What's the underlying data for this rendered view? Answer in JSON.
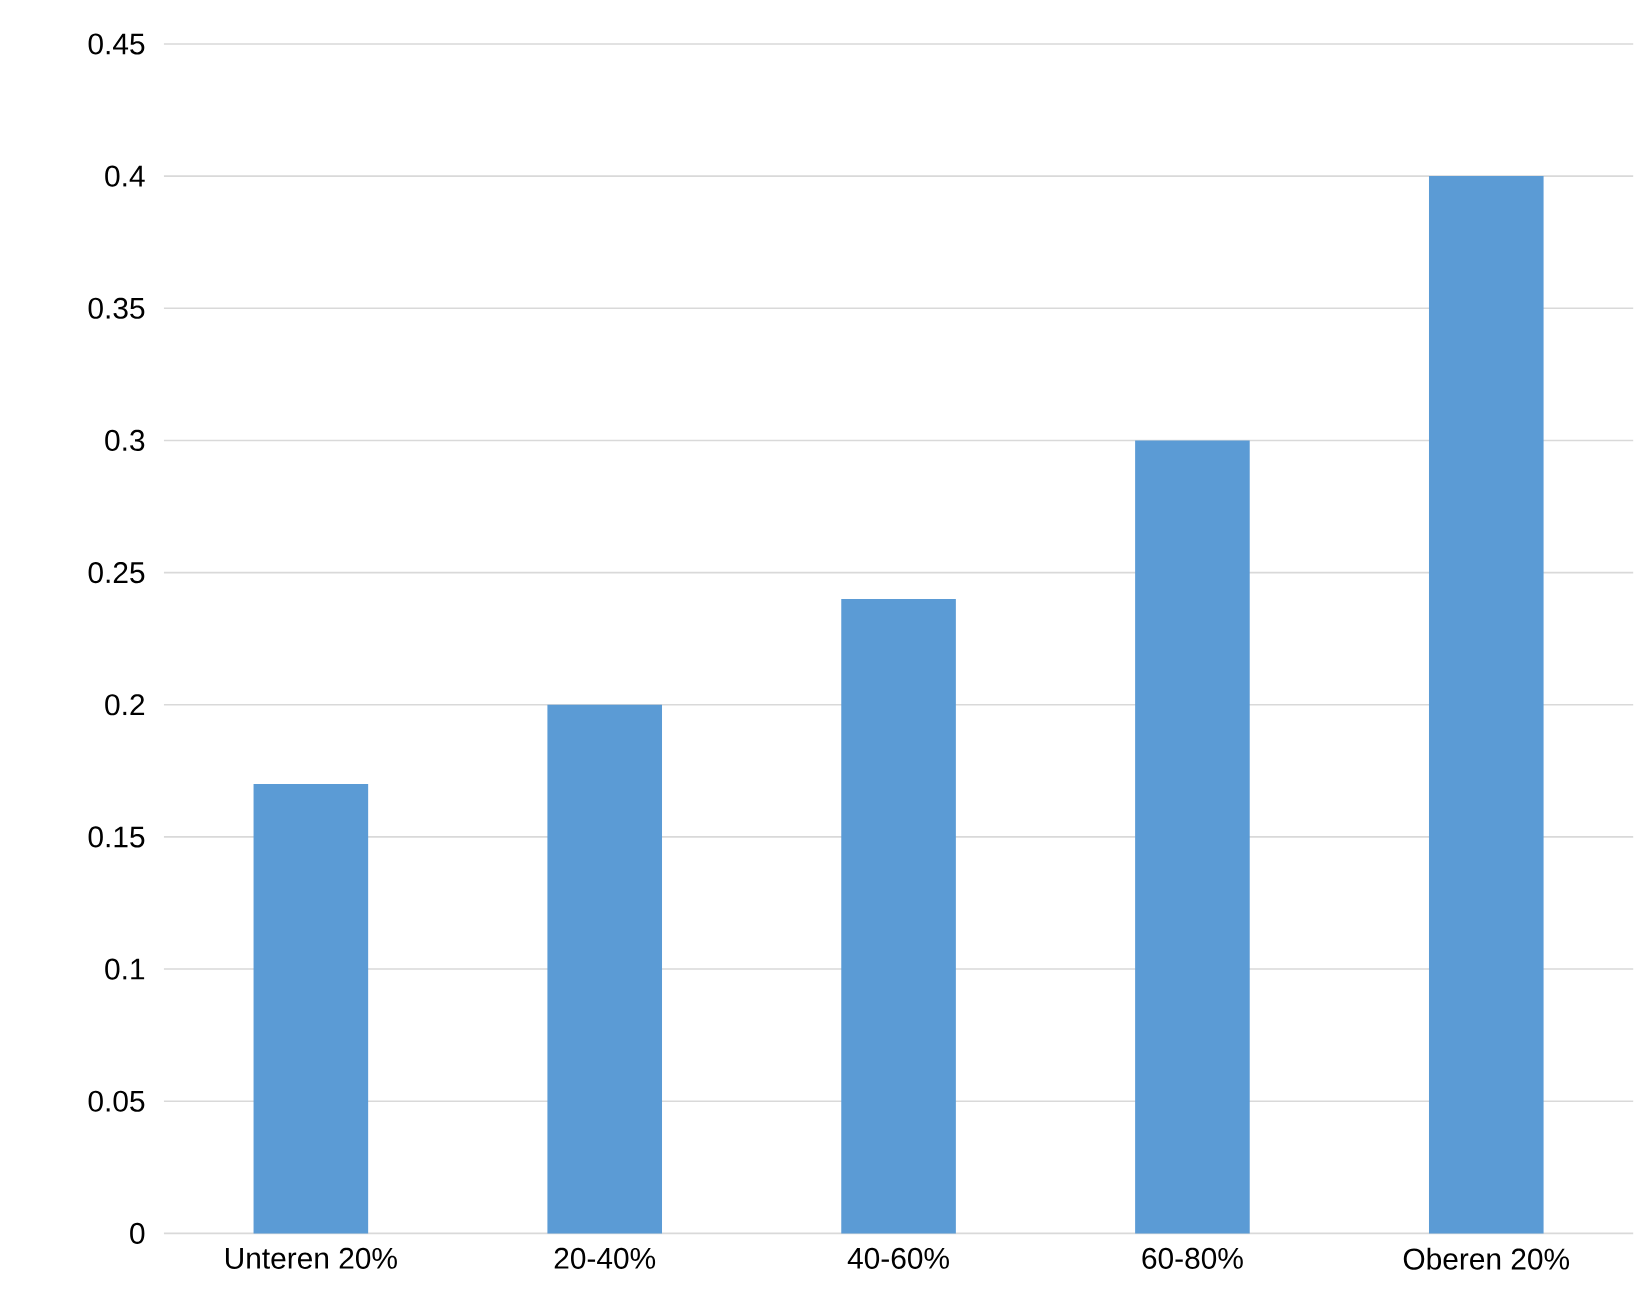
{
  "chart_data": {
    "type": "bar",
    "categories": [
      "Unteren 20%",
      "20-40%",
      "40-60%",
      "60-80%",
      "Oberen 20%"
    ],
    "values": [
      0.17,
      0.2,
      0.24,
      0.3,
      0.4
    ],
    "color": "#5b9bd5",
    "ylim": [
      0,
      0.45
    ],
    "yticks": [
      0,
      0.05,
      0.1,
      0.15,
      0.2,
      0.25,
      0.3,
      0.35,
      0.4,
      0.45
    ],
    "grid": "y"
  }
}
